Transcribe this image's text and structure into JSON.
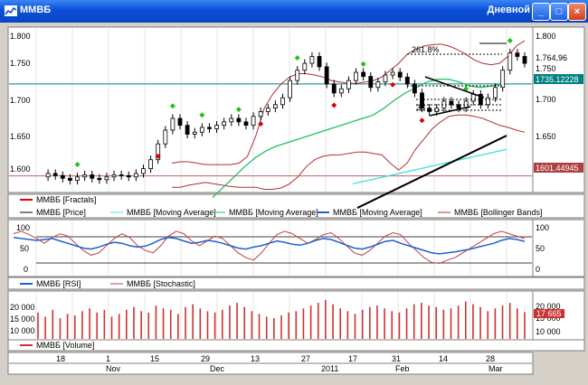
{
  "window": {
    "title": "ММВБ",
    "period": "Дневной"
  },
  "controls": {
    "minimize": "_",
    "maximize": "□",
    "close": "×"
  },
  "colors": {
    "up": "#000000",
    "down": "#e00000",
    "bollinger": "#b03030",
    "ma_fast": "#20c060",
    "ma_slow": "#40e0e0",
    "rsi": "#2060d0",
    "stoch": "#c04040",
    "volume": "#d03030",
    "fractal_up": "#20c020",
    "fractal_down": "#e00000"
  },
  "price_axis": {
    "ticks": [
      "1.800",
      "1.750",
      "1.700",
      "1.650",
      "1.600"
    ]
  },
  "price_badges": {
    "last": "1.764,96",
    "tick_1750": "1.750",
    "ma": "1735.12228",
    "low": "1601.44945"
  },
  "fib_labels": [
    "261.8%",
    "38"
  ],
  "legend_price": [
    "ММВБ [Fractals]",
    "ММВБ [Price]",
    "ММВБ [Moving Average]",
    "ММВБ [Moving Average]",
    "ММВБ [Moving Average]",
    "ММВБ [Bollinger Bands]"
  ],
  "osc_axis": {
    "ticks": [
      "100",
      "50",
      "0"
    ]
  },
  "legend_osc": [
    "ММВБ [RSI]",
    "ММВБ [Stochastic]"
  ],
  "vol_axis": {
    "ticks": [
      "20 000",
      "15 000",
      "10 000"
    ]
  },
  "vol_badge": "17 665",
  "legend_vol": [
    "ММВБ [Volume]"
  ],
  "date_axis": {
    "days": [
      "18",
      "1",
      "15",
      "29",
      "13",
      "27",
      "17",
      "31",
      "14",
      "28"
    ],
    "months": [
      "Nov",
      "Dec",
      "2011",
      "Feb",
      "Mar"
    ]
  },
  "chart_data": {
    "type": "candlestick",
    "price_range": [
      1580,
      1815
    ],
    "close": [
      1600,
      1605,
      1602,
      1598,
      1595,
      1600,
      1603,
      1598,
      1596,
      1600,
      1603,
      1602,
      1600,
      1605,
      1612,
      1625,
      1648,
      1668,
      1685,
      1675,
      1662,
      1665,
      1672,
      1670,
      1675,
      1680,
      1685,
      1680,
      1675,
      1688,
      1695,
      1700,
      1705,
      1715,
      1740,
      1755,
      1765,
      1775,
      1760,
      1735,
      1722,
      1728,
      1740,
      1752,
      1746,
      1730,
      1738,
      1748,
      1752,
      1745,
      1735,
      1722,
      1700,
      1695,
      1700,
      1710,
      1705,
      1700,
      1710,
      1720,
      1705,
      1715,
      1730,
      1755,
      1780,
      1775,
      1765
    ],
    "bollinger_upper": [
      1620,
      1622,
      1622,
      1620,
      1618,
      1618,
      1618,
      1618,
      1620,
      1630,
      1660,
      1700,
      1720,
      1735,
      1745,
      1750,
      1750,
      1748,
      1745,
      1740,
      1738,
      1736,
      1736,
      1738,
      1740,
      1745,
      1755,
      1765,
      1778,
      1785,
      1790,
      1792,
      1793,
      1790,
      1785,
      1778,
      1770,
      1765,
      1763,
      1765,
      1775,
      1790,
      1798
    ],
    "bollinger_lower": [
      1585,
      1585,
      1588,
      1590,
      1592,
      1590,
      1588,
      1586,
      1585,
      1585,
      1585,
      1582,
      1582,
      1584,
      1590,
      1600,
      1615,
      1625,
      1630,
      1632,
      1632,
      1634,
      1636,
      1636,
      1634,
      1632,
      1620,
      1610,
      1620,
      1640,
      1655,
      1670,
      1680,
      1688,
      1690,
      1690,
      1688,
      1685,
      1680,
      1675,
      1672,
      1668,
      1665
    ],
    "ma_fast": [
      1570,
      1585,
      1600,
      1615,
      1628,
      1638,
      1645,
      1650,
      1655,
      1660,
      1665,
      1670,
      1675,
      1680,
      1685,
      1690,
      1700,
      1712,
      1722,
      1730,
      1738,
      1742,
      1742,
      1738,
      1732,
      1730,
      1732,
      1735
    ],
    "ma_slow_start": [
      1590,
      1640
    ],
    "trendline": [
      [
        1555,
        1575
      ],
      [
        1640,
        1660
      ]
    ],
    "resistance": 1735.12,
    "support": 1601.45,
    "rsi": [
      72,
      70,
      68,
      66,
      68,
      70,
      65,
      60,
      55,
      50,
      48,
      52,
      58,
      62,
      60,
      55,
      52,
      54,
      60,
      68,
      72,
      70,
      65,
      60,
      62,
      66,
      64,
      60,
      55,
      50,
      48,
      52,
      55,
      60,
      65,
      62,
      58,
      56,
      60,
      66,
      70,
      68,
      62,
      56,
      50,
      48,
      52,
      58,
      64,
      66,
      60,
      55,
      50,
      45,
      40,
      38,
      40,
      42,
      45,
      48,
      52,
      56,
      60,
      66,
      70,
      68,
      64
    ],
    "stoch": [
      80,
      85,
      78,
      70,
      60,
      72,
      80,
      75,
      60,
      45,
      35,
      40,
      55,
      70,
      80,
      72,
      55,
      45,
      40,
      55,
      75,
      85,
      80,
      65,
      55,
      65,
      75,
      70,
      55,
      40,
      30,
      25,
      40,
      60,
      78,
      85,
      80,
      70,
      60,
      68,
      78,
      82,
      70,
      55,
      40,
      35,
      45,
      60,
      75,
      82,
      78,
      60,
      45,
      30,
      20,
      18,
      25,
      30,
      40,
      50,
      60,
      70,
      80,
      85,
      80,
      75,
      70
    ],
    "volume": [
      17500,
      16000,
      18500,
      15500,
      17000,
      16500,
      18000,
      19000,
      17500,
      18500,
      16000,
      17000,
      18500,
      19500,
      18000,
      17500,
      20000,
      19000,
      18500,
      17000,
      19500,
      20500,
      19000,
      18000,
      17500,
      18500,
      20000,
      21000,
      19500,
      18000,
      17000,
      16000,
      15500,
      16500,
      17500,
      18000,
      19000,
      20000,
      21000,
      22000,
      20500,
      19000,
      18000,
      17000,
      18500,
      19500,
      20000,
      19000,
      18000,
      17500,
      19000,
      20500,
      21000,
      20000,
      19500,
      18500,
      19000,
      20000,
      21500,
      20500,
      19500,
      18000,
      19000,
      20000,
      21000,
      19000,
      17665
    ]
  }
}
